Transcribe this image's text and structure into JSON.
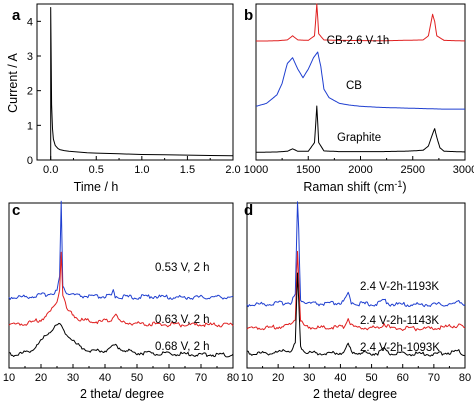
{
  "chart_data": [
    {
      "panel": "a",
      "type": "line",
      "xlabel": "Time / h",
      "ylabel": "Current / A",
      "xlim": [
        -0.15,
        2.0
      ],
      "ylim": [
        0,
        4.5
      ],
      "xticks": [
        "0.0",
        "0.5",
        "1.0",
        "1.5",
        "2.0"
      ],
      "yticks": [
        "0",
        "1",
        "2",
        "3",
        "4"
      ],
      "series": [
        {
          "color": "#000000",
          "x": [
            0,
            0,
            0.005,
            0.01,
            0.02,
            0.03,
            0.05,
            0.08,
            0.1,
            0.15,
            0.2,
            0.3,
            0.4,
            0.5,
            0.75,
            1.0,
            1.25,
            1.5,
            1.75,
            2.0
          ],
          "y": [
            0,
            4.4,
            3.2,
            1.6,
            0.9,
            0.6,
            0.42,
            0.33,
            0.3,
            0.27,
            0.25,
            0.23,
            0.21,
            0.2,
            0.18,
            0.16,
            0.15,
            0.14,
            0.13,
            0.12
          ]
        }
      ]
    },
    {
      "panel": "b",
      "type": "line",
      "xlabel": "Raman shift (cm⁻¹)",
      "ylabel": "",
      "xlim": [
        1000,
        3000
      ],
      "xticks": [
        "1000",
        "1500",
        "2000",
        "2500",
        "3000"
      ],
      "series": [
        {
          "name": "CB-2.6 V-1h",
          "color": "#e02020",
          "x": [
            1000,
            1100,
            1200,
            1300,
            1350,
            1400,
            1500,
            1560,
            1582,
            1600,
            1650,
            1800,
            2000,
            2200,
            2400,
            2600,
            2650,
            2690,
            2710,
            2730,
            2800,
            3000
          ],
          "y": [
            0.05,
            0.05,
            0.06,
            0.1,
            0.3,
            0.1,
            0.08,
            0.3,
            1.85,
            0.4,
            0.1,
            0.08,
            0.07,
            0.06,
            0.08,
            0.1,
            0.3,
            1.35,
            1.0,
            0.3,
            0.08,
            0.05
          ]
        },
        {
          "name": "CB",
          "color": "#1f3fd0",
          "x": [
            1000,
            1100,
            1200,
            1250,
            1300,
            1350,
            1400,
            1450,
            1500,
            1550,
            1590,
            1620,
            1650,
            1700,
            1800,
            1900,
            2000,
            2200,
            2400,
            2600,
            2800,
            3000
          ],
          "y": [
            0.1,
            0.15,
            0.3,
            0.5,
            0.85,
            0.95,
            0.75,
            0.6,
            0.75,
            0.95,
            1.05,
            0.8,
            0.4,
            0.25,
            0.15,
            0.12,
            0.1,
            0.08,
            0.07,
            0.06,
            0.05,
            0.05
          ]
        },
        {
          "name": "Graphite",
          "color": "#000000",
          "x": [
            1000,
            1200,
            1300,
            1350,
            1400,
            1500,
            1560,
            1582,
            1600,
            1650,
            1800,
            2000,
            2200,
            2400,
            2500,
            2600,
            2650,
            2690,
            2710,
            2730,
            2760,
            2800,
            3000
          ],
          "y": [
            0.02,
            0.03,
            0.05,
            0.12,
            0.05,
            0.05,
            0.3,
            1.35,
            0.3,
            0.06,
            0.04,
            0.04,
            0.04,
            0.05,
            0.06,
            0.08,
            0.2,
            0.55,
            0.7,
            0.45,
            0.15,
            0.05,
            0.03
          ]
        }
      ],
      "annotations": [
        "CB-2.6 V-1h",
        "CB",
        "Graphite"
      ]
    },
    {
      "panel": "c",
      "type": "line",
      "xlabel": "2 theta/ degree",
      "ylabel": "",
      "xlim": [
        10,
        80
      ],
      "xticks": [
        "10",
        "20",
        "30",
        "40",
        "50",
        "60",
        "70",
        "80"
      ],
      "series": [
        {
          "name": "0.53 V, 2 h",
          "color": "#1f3fd0",
          "x": [
            10,
            15,
            20,
            23,
            25,
            25.8,
            26.3,
            26.8,
            28,
            32,
            38,
            42,
            42.6,
            43.2,
            45,
            50,
            54,
            60,
            70,
            78,
            80
          ],
          "y": [
            0.1,
            0.12,
            0.18,
            0.25,
            0.35,
            0.9,
            3.7,
            0.6,
            0.25,
            0.15,
            0.12,
            0.15,
            0.35,
            0.15,
            0.12,
            0.1,
            0.15,
            0.1,
            0.1,
            0.12,
            0.1
          ]
        },
        {
          "name": "0.63 V, 2 h",
          "color": "#e02020",
          "x": [
            10,
            15,
            20,
            23,
            25,
            25.8,
            26.3,
            26.8,
            28,
            32,
            38,
            42,
            43,
            45,
            50,
            55,
            60,
            70,
            80
          ],
          "y": [
            0.1,
            0.12,
            0.2,
            0.35,
            0.55,
            0.8,
            1.5,
            0.7,
            0.4,
            0.2,
            0.15,
            0.2,
            0.3,
            0.15,
            0.12,
            0.12,
            0.1,
            0.1,
            0.1
          ]
        },
        {
          "name": "0.68 V, 2 h",
          "color": "#000000",
          "x": [
            10,
            14,
            18,
            21,
            24,
            26,
            28,
            31,
            35,
            40,
            43,
            46,
            50,
            55,
            60,
            70,
            80
          ],
          "y": [
            0.05,
            0.08,
            0.2,
            0.45,
            0.7,
            0.75,
            0.55,
            0.3,
            0.15,
            0.15,
            0.28,
            0.15,
            0.1,
            0.08,
            0.07,
            0.06,
            0.05
          ]
        }
      ],
      "annotations": [
        "0.53 V, 2 h",
        "0.63 V, 2 h",
        "0.68 V, 2 h"
      ]
    },
    {
      "panel": "d",
      "type": "line",
      "xlabel": "2 theta/ degree",
      "ylabel": "",
      "xlim": [
        10,
        80
      ],
      "xticks": [
        "10",
        "20",
        "30",
        "40",
        "50",
        "60",
        "70",
        "80"
      ],
      "series": [
        {
          "name": "2.4 V-2h-1193K",
          "color": "#1f3fd0",
          "x": [
            10,
            15,
            20,
            24,
            25.5,
            26.2,
            26.6,
            27.2,
            29,
            35,
            41,
            42.5,
            43.5,
            46,
            52,
            54,
            56,
            60,
            70,
            77,
            78,
            80
          ],
          "y": [
            0.1,
            0.12,
            0.15,
            0.2,
            0.5,
            4.3,
            3.2,
            0.3,
            0.15,
            0.12,
            0.18,
            0.55,
            0.2,
            0.13,
            0.12,
            0.3,
            0.12,
            0.1,
            0.1,
            0.12,
            0.3,
            0.1
          ]
        },
        {
          "name": "2.4 V-2h-1143K",
          "color": "#e02020",
          "x": [
            10,
            15,
            20,
            24,
            25.5,
            26.2,
            26.6,
            27.2,
            29,
            35,
            41,
            42.5,
            43.5,
            46,
            52,
            54,
            56,
            60,
            70,
            78,
            80
          ],
          "y": [
            0.1,
            0.12,
            0.15,
            0.2,
            0.4,
            2.4,
            1.6,
            0.3,
            0.15,
            0.12,
            0.15,
            0.4,
            0.18,
            0.12,
            0.12,
            0.25,
            0.12,
            0.1,
            0.1,
            0.2,
            0.1
          ]
        },
        {
          "name": "2.4 V-2h-1093K",
          "color": "#000000",
          "x": [
            10,
            15,
            20,
            24,
            25.5,
            26.2,
            26.6,
            27.2,
            29,
            35,
            41,
            42.5,
            43.5,
            46,
            52,
            54,
            56,
            60,
            70,
            78,
            80
          ],
          "y": [
            0.1,
            0.1,
            0.12,
            0.18,
            0.35,
            2.2,
            1.5,
            0.3,
            0.12,
            0.1,
            0.12,
            0.35,
            0.15,
            0.1,
            0.1,
            0.2,
            0.1,
            0.08,
            0.08,
            0.15,
            0.08
          ]
        }
      ],
      "annotations": [
        "2.4 V-2h-1193K",
        "2.4 V-2h-1143K",
        "2.4 V-2h-1093K"
      ]
    }
  ]
}
